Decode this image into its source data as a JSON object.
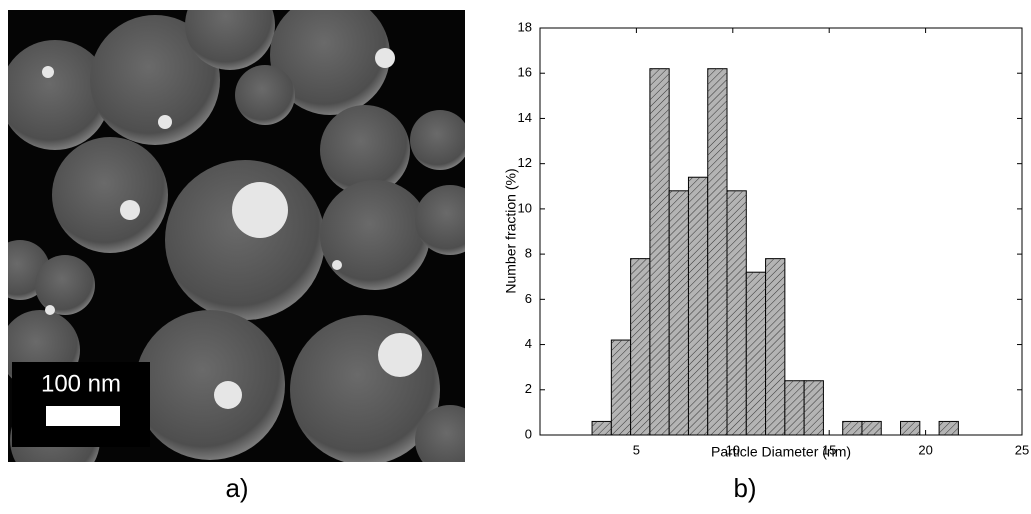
{
  "image_panel": {
    "scale_bar_label": "100 nm",
    "panel_label": "a)"
  },
  "chart_panel_label": "b)",
  "chart_data": {
    "type": "histogram",
    "x_label": "Particle Diameter (nm)",
    "y_label": "Number fraction (%)",
    "bins": [
      2.7,
      3.7,
      4.7,
      5.7,
      6.7,
      7.7,
      8.7,
      9.7,
      10.7,
      11.7,
      12.7,
      13.7,
      14.7,
      15.7,
      16.7,
      17.7,
      18.7,
      19.7,
      20.7,
      21.7
    ],
    "values": [
      0.6,
      4.2,
      7.8,
      16.2,
      10.8,
      11.4,
      16.2,
      10.8,
      7.2,
      7.8,
      2.4,
      2.4,
      0,
      0.6,
      0.6,
      0,
      0.6,
      0,
      0.6
    ],
    "color": "#b4b4b4",
    "xlim": [
      0,
      25
    ],
    "xticks": [
      5,
      10,
      15,
      20,
      25
    ],
    "ylim": [
      0,
      18
    ],
    "yticks": [
      0,
      2,
      4,
      6,
      8,
      10,
      12,
      14,
      16,
      18
    ]
  }
}
